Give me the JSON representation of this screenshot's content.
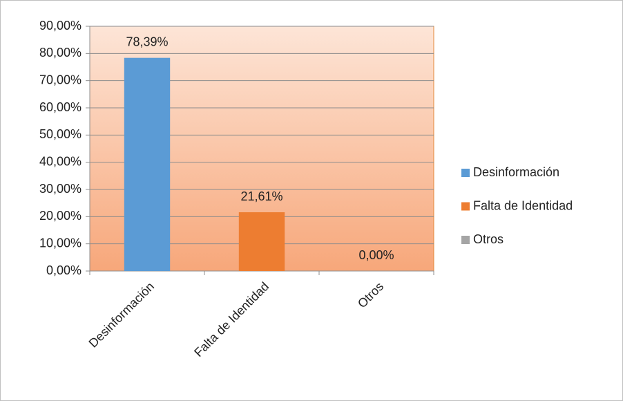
{
  "chart_data": {
    "type": "bar",
    "categories": [
      "Desinformación",
      "Falta de Identidad",
      "Otros"
    ],
    "values": [
      78.39,
      21.61,
      0
    ],
    "value_labels": [
      "78,39%",
      "21,61%",
      "0,00%"
    ],
    "colors": [
      "#5b9bd5",
      "#ed7d31",
      "#a5a5a5"
    ],
    "ylim": [
      0,
      90
    ],
    "yticks": [
      {
        "value": 0,
        "label": "0,00%"
      },
      {
        "value": 10,
        "label": "10,00%"
      },
      {
        "value": 20,
        "label": "20,00%"
      },
      {
        "value": 30,
        "label": "30,00%"
      },
      {
        "value": 40,
        "label": "40,00%"
      },
      {
        "value": 50,
        "label": "50,00%"
      },
      {
        "value": 60,
        "label": "60,00%"
      },
      {
        "value": 70,
        "label": "70,00%"
      },
      {
        "value": 80,
        "label": "80,00%"
      },
      {
        "value": 90,
        "label": "90,00%"
      }
    ],
    "grid": true,
    "legend": "right"
  }
}
